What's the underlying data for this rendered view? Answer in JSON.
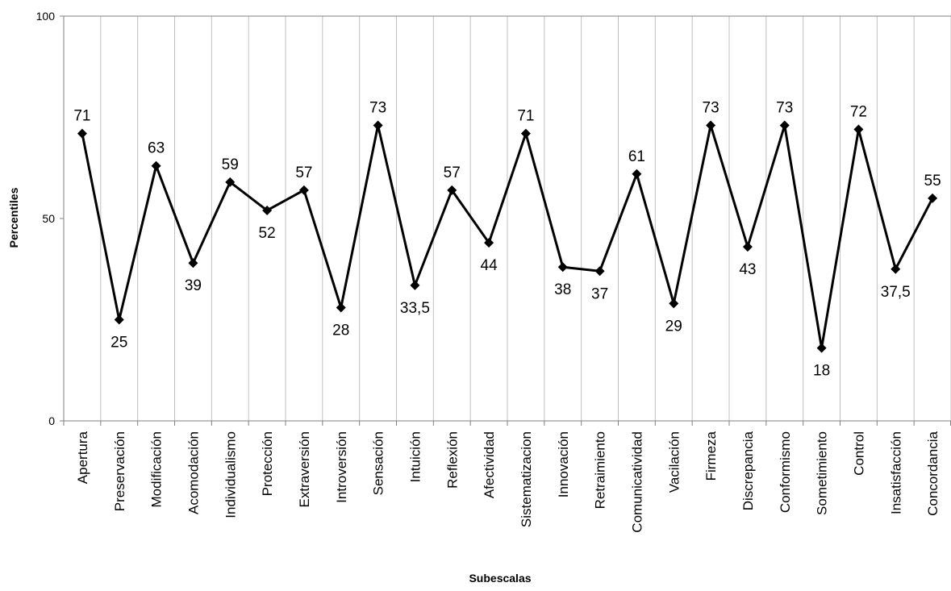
{
  "chart_data": {
    "type": "line",
    "title": "",
    "xlabel": "Subescalas",
    "ylabel": "Percentiles",
    "ylim": [
      0,
      100
    ],
    "yticks": [
      "0",
      "50",
      "100"
    ],
    "grid": "vertical",
    "legend": "none",
    "line_color": "#000000",
    "grid_color": "#bfbfbf",
    "marker": "diamond",
    "categories": [
      "Apertura",
      "Preservación",
      "Modificación",
      "Acomodación",
      "Individualismo",
      "Protección",
      "Extraversión",
      "Introversión",
      "Sensación",
      "Intuición",
      "Reflexión",
      "Afectividad",
      "Sistematizacion",
      "Innovación",
      "Retraimiento",
      "Comunicatividad",
      "Vacilación",
      "Firmeza",
      "Discrepancia",
      "Conformismo",
      "Sometimiento",
      "Control",
      "Insatisfacción",
      "Concordancia"
    ],
    "series": [
      {
        "values": [
          71,
          25,
          63,
          39,
          59,
          52,
          57,
          28,
          73,
          33.5,
          57,
          44,
          71,
          38,
          37,
          61,
          29,
          73,
          43,
          73,
          18,
          72,
          37.5,
          55
        ],
        "labels": [
          "71",
          "25",
          "63",
          "39",
          "59",
          "52",
          "57",
          "28",
          "73",
          "33,5",
          "57",
          "44",
          "71",
          "38",
          "37",
          "61",
          "29",
          "73",
          "43",
          "73",
          "18",
          "72",
          "37,5",
          "55"
        ],
        "label_positions": [
          "above",
          "below",
          "above",
          "below",
          "above",
          "below",
          "above",
          "below",
          "above",
          "below",
          "above",
          "below",
          "above",
          "below",
          "below",
          "above",
          "below",
          "above",
          "below",
          "above",
          "below",
          "above",
          "below",
          "above"
        ]
      }
    ]
  }
}
